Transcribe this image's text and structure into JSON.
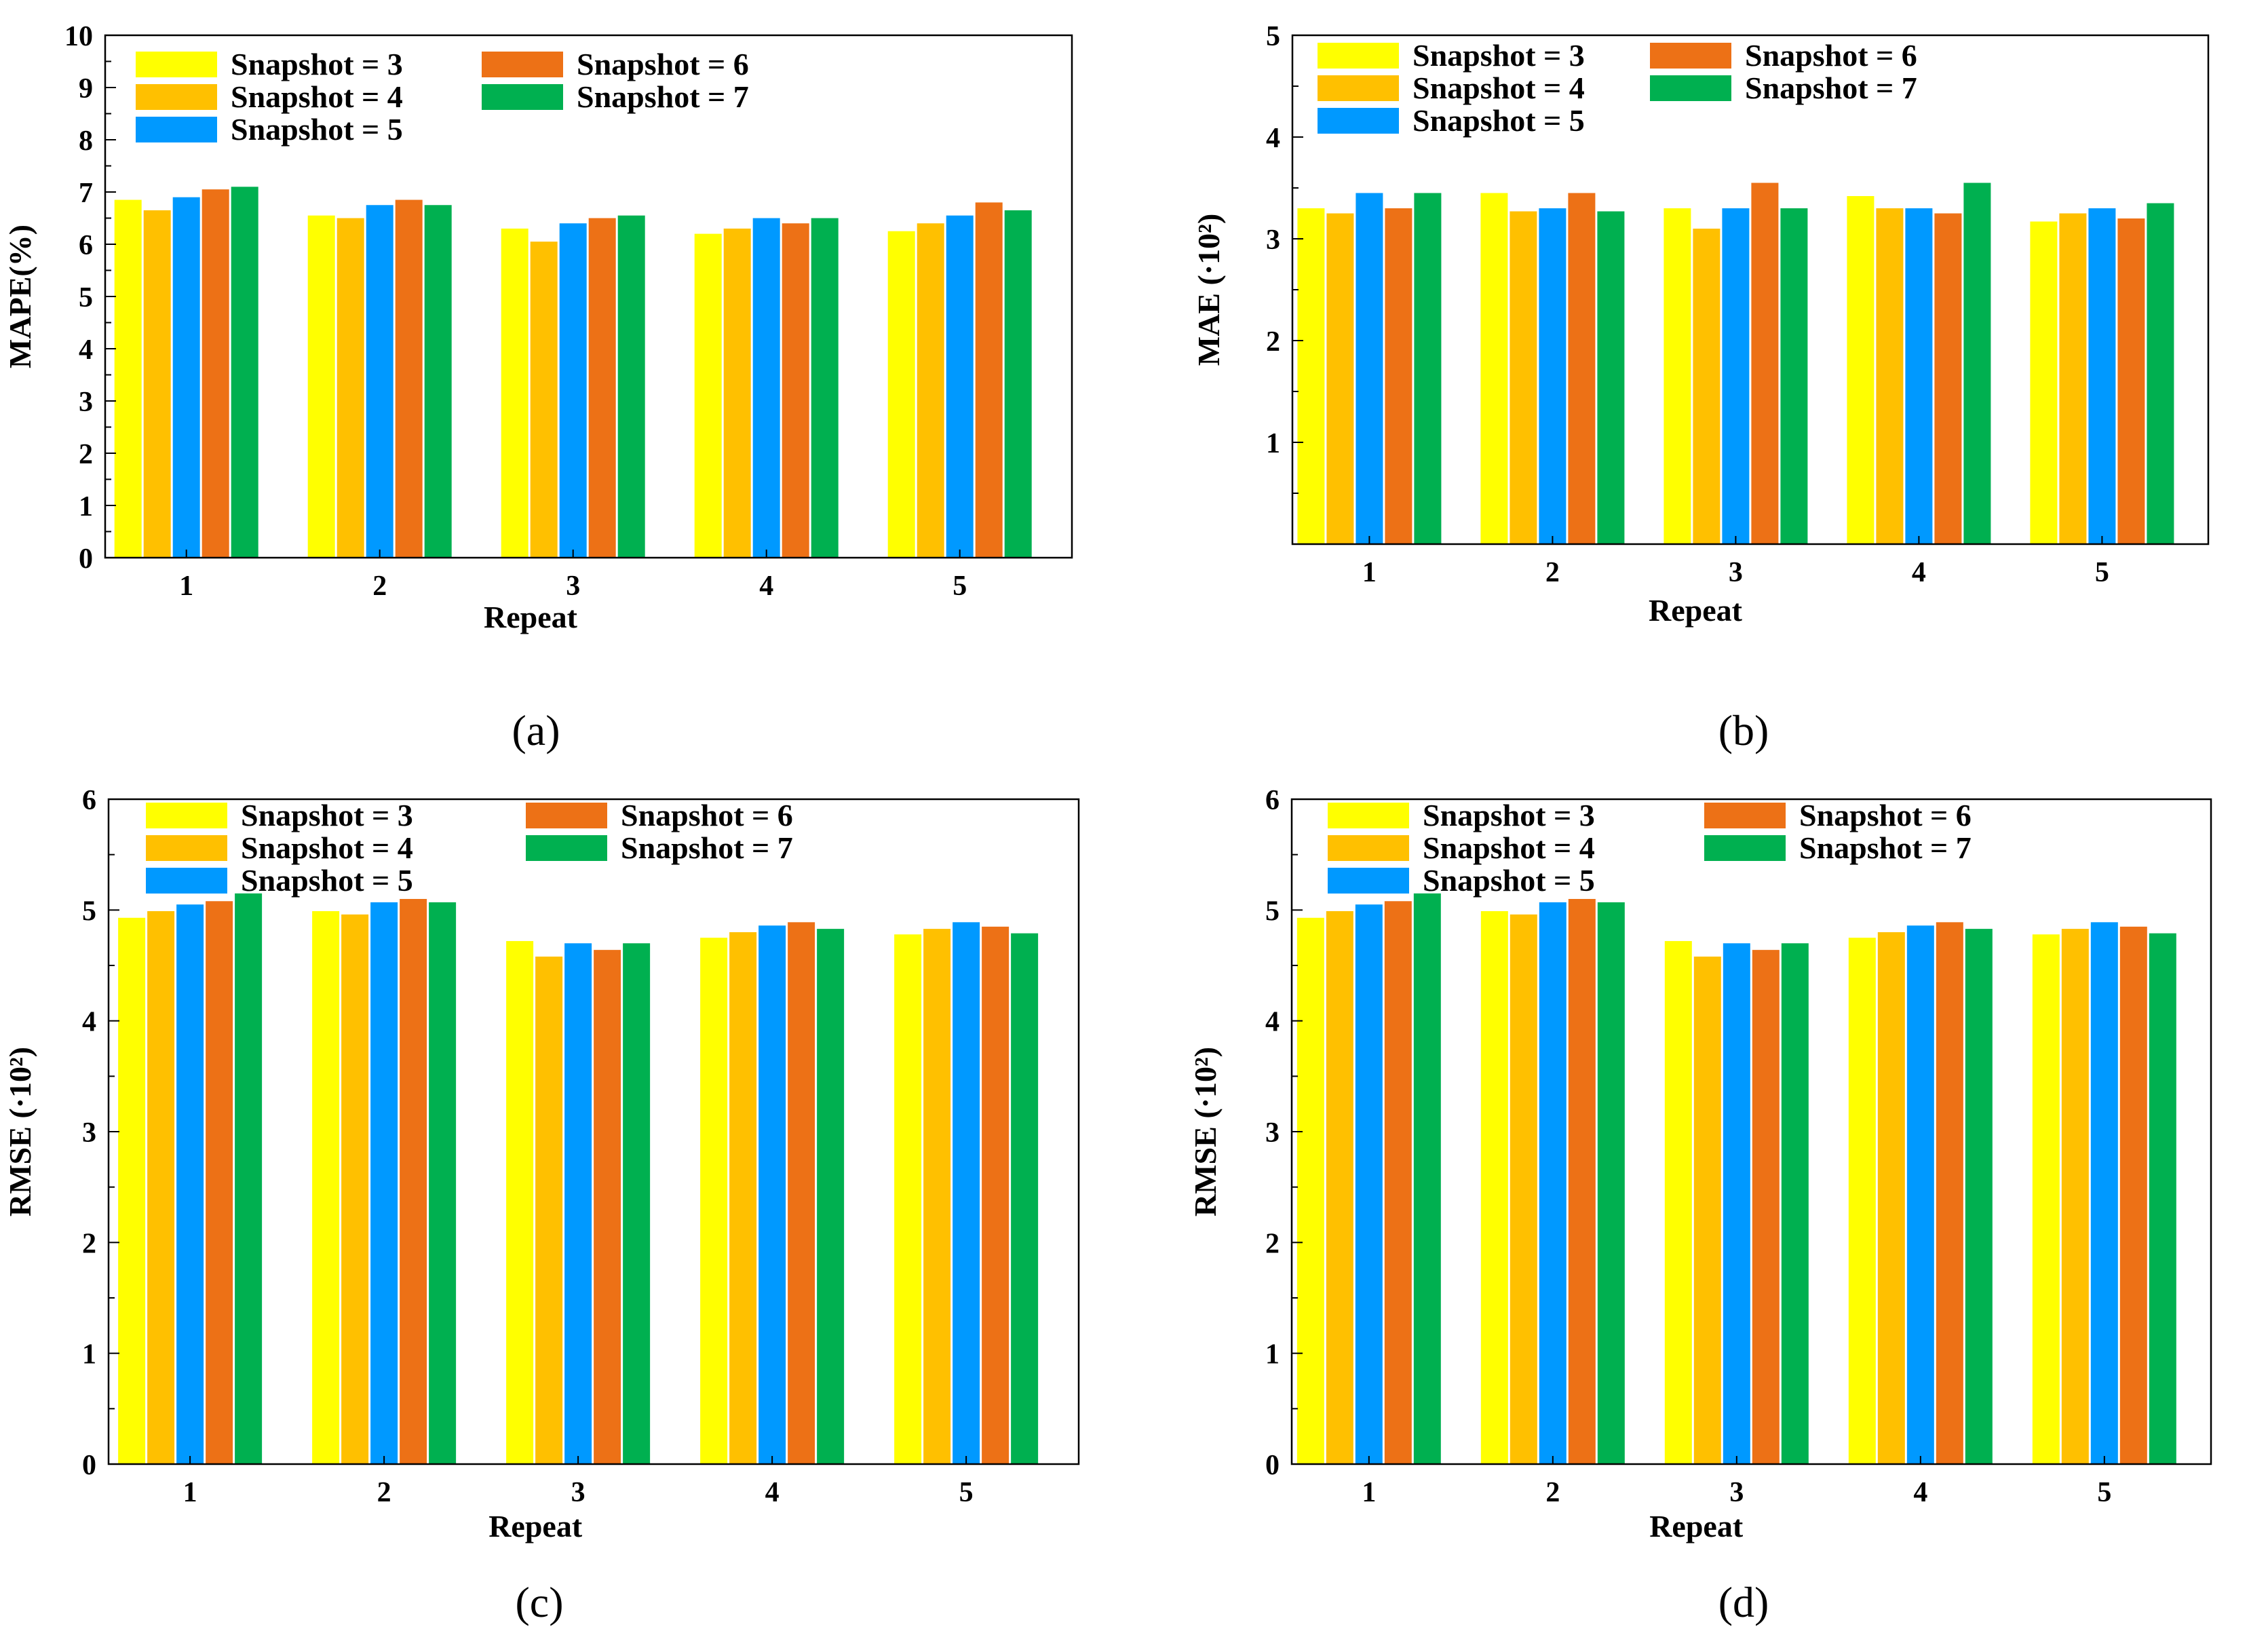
{
  "colors": {
    "snap3": "#ffff00",
    "snap4": "#ffc000",
    "snap5": "#0099ff",
    "snap6": "#ed7116",
    "snap7": "#00b050",
    "frame": "#000000"
  },
  "chart_data": [
    {
      "type": "bar",
      "caption": "(a)",
      "xlabel": "Repeat",
      "ylabel": "MAPE(%)",
      "ylim": [
        0,
        10
      ],
      "yticks": [
        "0",
        "1",
        "2",
        "3",
        "4",
        "5",
        "6",
        "7",
        "8",
        "9",
        "10"
      ],
      "categories": [
        "1",
        "2",
        "3",
        "4",
        "5"
      ],
      "series": [
        {
          "name": "Snapshot = 3",
          "values": [
            6.85,
            6.55,
            6.3,
            6.2,
            6.25
          ]
        },
        {
          "name": "Snapshot = 4",
          "values": [
            6.65,
            6.5,
            6.05,
            6.3,
            6.4
          ]
        },
        {
          "name": "Snapshot = 5",
          "values": [
            6.9,
            6.75,
            6.4,
            6.5,
            6.55
          ]
        },
        {
          "name": "Snapshot = 6",
          "values": [
            7.05,
            6.85,
            6.5,
            6.4,
            6.8
          ]
        },
        {
          "name": "Snapshot = 7",
          "values": [
            7.1,
            6.75,
            6.55,
            6.5,
            6.65
          ]
        }
      ]
    },
    {
      "type": "bar",
      "caption": "(b)",
      "xlabel": "Repeat",
      "ylabel": "MAE (·10²)",
      "ylim": [
        0,
        5
      ],
      "yticks": [
        "",
        "1",
        "2",
        "3",
        "4",
        "5"
      ],
      "categories": [
        "1",
        "2",
        "3",
        "4",
        "5"
      ],
      "series": [
        {
          "name": "Snapshot = 3",
          "values": [
            3.3,
            3.45,
            3.3,
            3.42,
            3.17
          ]
        },
        {
          "name": "Snapshot = 4",
          "values": [
            3.25,
            3.27,
            3.1,
            3.3,
            3.25
          ]
        },
        {
          "name": "Snapshot = 5",
          "values": [
            3.45,
            3.3,
            3.3,
            3.3,
            3.3
          ]
        },
        {
          "name": "Snapshot = 6",
          "values": [
            3.3,
            3.45,
            3.55,
            3.25,
            3.2
          ]
        },
        {
          "name": "Snapshot = 7",
          "values": [
            3.45,
            3.27,
            3.3,
            3.55,
            3.35
          ]
        }
      ]
    },
    {
      "type": "bar",
      "caption": "(c)",
      "xlabel": "Repeat",
      "ylabel": "RMSE (·10²)",
      "ylim": [
        0,
        6
      ],
      "yticks": [
        "0",
        "1",
        "2",
        "3",
        "4",
        "5",
        "6"
      ],
      "categories": [
        "1",
        "2",
        "3",
        "4",
        "5"
      ],
      "series": [
        {
          "name": "Snapshot = 3",
          "values": [
            4.93,
            4.99,
            4.72,
            4.75,
            4.78
          ]
        },
        {
          "name": "Snapshot = 4",
          "values": [
            4.99,
            4.96,
            4.58,
            4.8,
            4.83
          ]
        },
        {
          "name": "Snapshot = 5",
          "values": [
            5.05,
            5.07,
            4.7,
            4.86,
            4.89
          ]
        },
        {
          "name": "Snapshot = 6",
          "values": [
            5.08,
            5.1,
            4.64,
            4.89,
            4.85
          ]
        },
        {
          "name": "Snapshot = 7",
          "values": [
            5.15,
            5.07,
            4.7,
            4.83,
            4.79
          ]
        }
      ]
    },
    {
      "type": "bar",
      "caption": "(d)",
      "xlabel": "Repeat",
      "ylabel": "RMSE (·10²)",
      "ylim": [
        0,
        6
      ],
      "yticks": [
        "0",
        "1",
        "2",
        "3",
        "4",
        "5",
        "6"
      ],
      "categories": [
        "1",
        "2",
        "3",
        "4",
        "5"
      ],
      "series": [
        {
          "name": "Snapshot = 3",
          "values": [
            4.93,
            4.99,
            4.72,
            4.75,
            4.78
          ]
        },
        {
          "name": "Snapshot = 4",
          "values": [
            4.99,
            4.96,
            4.58,
            4.8,
            4.83
          ]
        },
        {
          "name": "Snapshot = 5",
          "values": [
            5.05,
            5.07,
            4.7,
            4.86,
            4.89
          ]
        },
        {
          "name": "Snapshot = 6",
          "values": [
            5.08,
            5.1,
            4.64,
            4.89,
            4.85
          ]
        },
        {
          "name": "Snapshot = 7",
          "values": [
            5.15,
            5.07,
            4.7,
            4.83,
            4.79
          ]
        }
      ]
    }
  ]
}
